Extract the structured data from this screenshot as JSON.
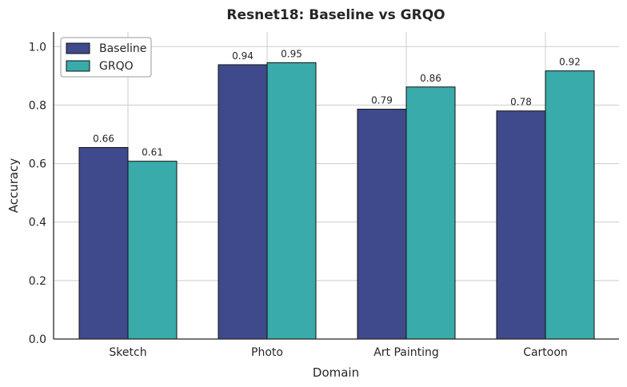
{
  "chart_data": {
    "type": "bar",
    "title": "Resnet18: Baseline vs GRQO",
    "xlabel": "Domain",
    "ylabel": "Accuracy",
    "categories": [
      "Sketch",
      "Photo",
      "Art Painting",
      "Cartoon"
    ],
    "series": [
      {
        "name": "Baseline",
        "color": "#3f4a8c",
        "values": [
          0.655,
          0.938,
          0.786,
          0.78
        ],
        "labels": [
          "0.66",
          "0.94",
          "0.79",
          "0.78"
        ]
      },
      {
        "name": "GRQO",
        "color": "#38abaa",
        "values": [
          0.608,
          0.945,
          0.862,
          0.917
        ],
        "labels": [
          "0.61",
          "0.95",
          "0.86",
          "0.92"
        ]
      }
    ],
    "ylim": [
      0,
      1.05
    ],
    "yticks": [
      "0.0",
      "0.2",
      "0.4",
      "0.6",
      "0.8",
      "1.0"
    ],
    "grid": true,
    "legend_position": "top-left"
  }
}
